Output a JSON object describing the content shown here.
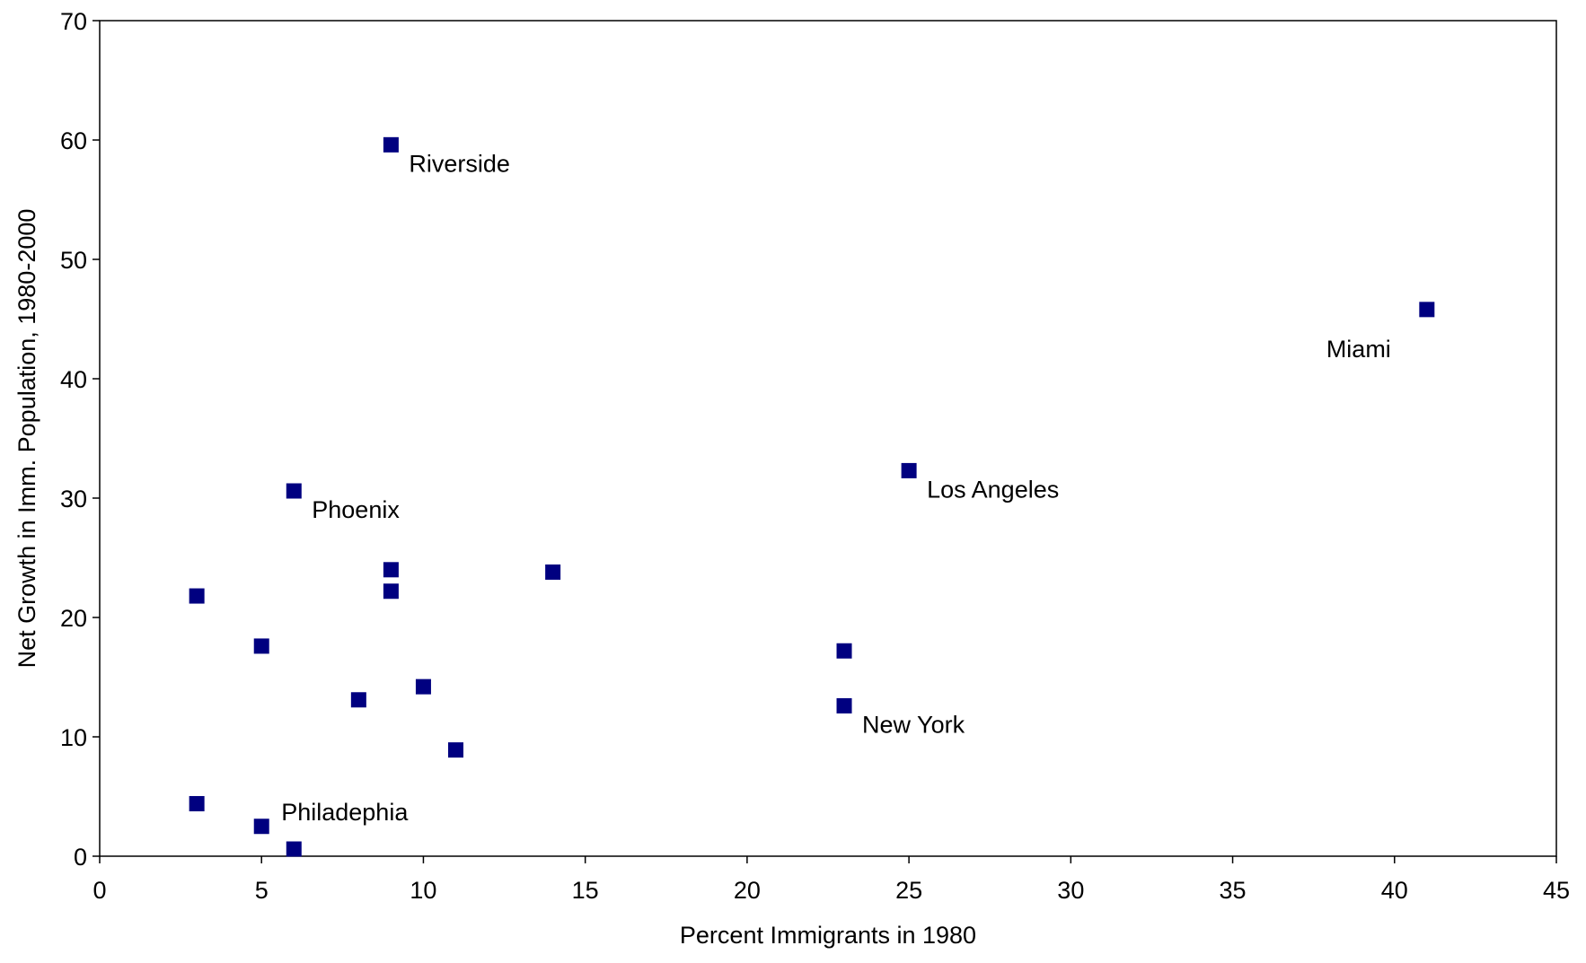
{
  "chart_data": {
    "type": "scatter",
    "title": "",
    "xlabel": "Percent Immigrants in 1980",
    "ylabel": "Net Growth in Imm. Population, 1980-2000",
    "xlim": [
      0,
      45
    ],
    "ylim": [
      0,
      70
    ],
    "xticks": [
      0,
      5,
      10,
      15,
      20,
      25,
      30,
      35,
      40,
      45
    ],
    "yticks": [
      0,
      10,
      20,
      30,
      40,
      50,
      60,
      70
    ],
    "grid": false,
    "legend": "none",
    "marker": "square",
    "marker_color": "#000080",
    "points": [
      {
        "x": 9,
        "y": 59.6,
        "label": "Riverside",
        "label_pos": "below-right"
      },
      {
        "x": 41,
        "y": 45.8,
        "label": "Miami",
        "label_pos": "below-left"
      },
      {
        "x": 25,
        "y": 32.3,
        "label": "Los Angeles",
        "label_pos": "below-right"
      },
      {
        "x": 6,
        "y": 30.6,
        "label": "Phoenix",
        "label_pos": "below-right"
      },
      {
        "x": 9,
        "y": 24.0
      },
      {
        "x": 14,
        "y": 23.8
      },
      {
        "x": 9,
        "y": 22.2
      },
      {
        "x": 3,
        "y": 21.8
      },
      {
        "x": 5,
        "y": 17.6
      },
      {
        "x": 23,
        "y": 17.2
      },
      {
        "x": 10,
        "y": 14.2
      },
      {
        "x": 8,
        "y": 13.1
      },
      {
        "x": 23,
        "y": 12.6,
        "label": "New York",
        "label_pos": "below-right"
      },
      {
        "x": 11,
        "y": 8.9
      },
      {
        "x": 3,
        "y": 4.4
      },
      {
        "x": 5,
        "y": 2.5,
        "label": "Philadephia",
        "label_pos": "above-right"
      },
      {
        "x": 6,
        "y": 0.6
      }
    ]
  }
}
